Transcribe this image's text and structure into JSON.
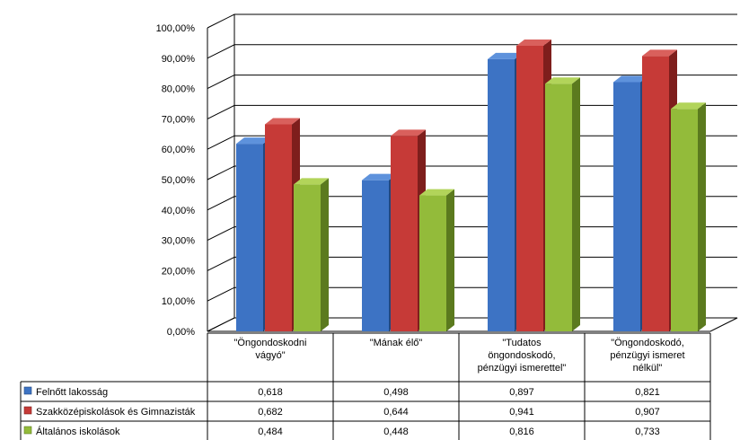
{
  "chart_data": {
    "type": "bar",
    "categories": [
      [
        "\"Öngondoskodni",
        "vágyó\""
      ],
      [
        "\"Mának élő\""
      ],
      [
        "\"Tudatos",
        "öngondoskodó,",
        "pénzügyi ismerettel\""
      ],
      [
        "\"Öngondoskodó,",
        "pénzügyi ismeret",
        "nélkül\""
      ]
    ],
    "series": [
      {
        "name": "Felnőtt lakosság",
        "values": [
          0.618,
          0.498,
          0.897,
          0.821
        ],
        "labels": [
          "0,618",
          "0,498",
          "0,897",
          "0,821"
        ],
        "color": "#3d73c4",
        "dark": "#23477e",
        "light": "#5e92dc"
      },
      {
        "name": "Szakközépiskolások és Gimnazisták",
        "values": [
          0.682,
          0.644,
          0.941,
          0.907
        ],
        "labels": [
          "0,682",
          "0,644",
          "0,941",
          "0,907"
        ],
        "color": "#c63a37",
        "dark": "#7e1e1c",
        "light": "#d9605c"
      },
      {
        "name": "Általános iskolások",
        "values": [
          0.484,
          0.448,
          0.816,
          0.733
        ],
        "labels": [
          "0,484",
          "0,448",
          "0,816",
          "0,733"
        ],
        "color": "#93bb3a",
        "dark": "#5b7a1e",
        "light": "#b2d45a"
      }
    ],
    "yticks": [
      "0,00%",
      "10,00%",
      "20,00%",
      "30,00%",
      "40,00%",
      "50,00%",
      "60,00%",
      "70,00%",
      "80,00%",
      "90,00%",
      "100,00%"
    ],
    "ylim": [
      0,
      1
    ],
    "grid": true,
    "legend": "data-table",
    "title": "",
    "xlabel": "",
    "ylabel": ""
  }
}
